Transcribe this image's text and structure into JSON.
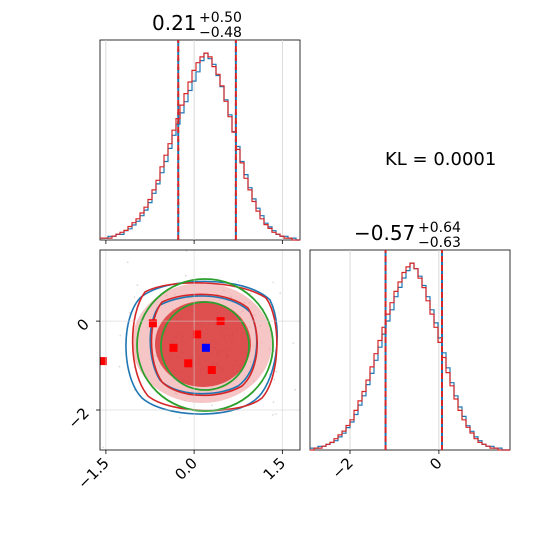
{
  "chart_data": {
    "type": "corner",
    "kl_text": "KL = 0.0001",
    "params": [
      {
        "median": "0.21",
        "plus": "+0.50",
        "minus": "−0.48",
        "quantiles": [
          -0.27,
          0.21,
          0.71
        ]
      },
      {
        "median": "−0.57",
        "plus": "+0.64",
        "minus": "−0.63",
        "quantiles": [
          -1.2,
          -0.57,
          0.07
        ]
      }
    ],
    "axes": {
      "x0_range": [
        -1.6,
        1.8
      ],
      "x1_range": [
        -2.9,
        1.6
      ],
      "y1_range": [
        -2.9,
        1.6
      ],
      "x0_ticks": [
        -1.5,
        0.0,
        1.5
      ],
      "x0_tick_labels": [
        "−1.5",
        "0.0",
        "1.5"
      ],
      "y1_ticks": [
        0,
        -2
      ],
      "y1_tick_labels": [
        "0",
        "−2"
      ],
      "x1_ticks": [
        -2,
        0
      ],
      "x1_tick_labels": [
        "−2",
        "0"
      ],
      "grid": true
    },
    "series": [
      {
        "color": "#1f77b4"
      },
      {
        "color": "#d62728"
      },
      {
        "color": "#2ca02c"
      }
    ],
    "hist0_blue": [
      1,
      1,
      2,
      2,
      3,
      3,
      5,
      6,
      8,
      10,
      13,
      16,
      20,
      25,
      30,
      36,
      42,
      49,
      56,
      62,
      68,
      74,
      80,
      85,
      90,
      96,
      100,
      97,
      94,
      88,
      82,
      75,
      67,
      58,
      50,
      42,
      35,
      28,
      22,
      17,
      13,
      9,
      7,
      5,
      3,
      2,
      2,
      1,
      1,
      0
    ],
    "hist0_red": [
      1,
      1,
      1,
      2,
      3,
      4,
      5,
      7,
      9,
      11,
      14,
      17,
      21,
      26,
      31,
      38,
      44,
      50,
      57,
      63,
      70,
      76,
      82,
      88,
      92,
      95,
      97,
      95,
      90,
      86,
      80,
      72,
      64,
      56,
      47,
      40,
      32,
      26,
      20,
      15,
      11,
      8,
      6,
      4,
      3,
      2,
      1,
      1,
      0,
      0
    ],
    "hist1_blue": [
      1,
      1,
      2,
      2,
      3,
      4,
      5,
      7,
      9,
      12,
      15,
      19,
      24,
      29,
      35,
      41,
      48,
      55,
      62,
      69,
      75,
      82,
      87,
      92,
      96,
      100,
      97,
      93,
      88,
      82,
      75,
      68,
      60,
      52,
      44,
      36,
      29,
      23,
      18,
      13,
      10,
      7,
      5,
      3,
      2,
      2,
      1,
      1,
      0,
      0
    ],
    "hist1_red": [
      0,
      1,
      1,
      2,
      3,
      4,
      6,
      8,
      10,
      13,
      16,
      21,
      26,
      31,
      37,
      44,
      51,
      58,
      65,
      72,
      78,
      84,
      89,
      94,
      97,
      99,
      96,
      91,
      86,
      79,
      72,
      65,
      57,
      49,
      41,
      34,
      27,
      21,
      16,
      12,
      9,
      6,
      4,
      3,
      2,
      1,
      1,
      0,
      0,
      0
    ],
    "square_markers": [
      {
        "x": -1.55,
        "y": -0.9,
        "color": "#ff0000"
      },
      {
        "x": -0.7,
        "y": -0.05,
        "color": "#ff0000"
      },
      {
        "x": -0.35,
        "y": -0.6,
        "color": "#ff0000"
      },
      {
        "x": -0.1,
        "y": -0.95,
        "color": "#ff0000"
      },
      {
        "x": 0.05,
        "y": -0.3,
        "color": "#ff0000"
      },
      {
        "x": 0.3,
        "y": -1.1,
        "color": "#ff0000"
      },
      {
        "x": 0.45,
        "y": 0.0,
        "color": "#ff0000"
      },
      {
        "x": 0.2,
        "y": -0.6,
        "color": "#0000ff"
      }
    ]
  }
}
